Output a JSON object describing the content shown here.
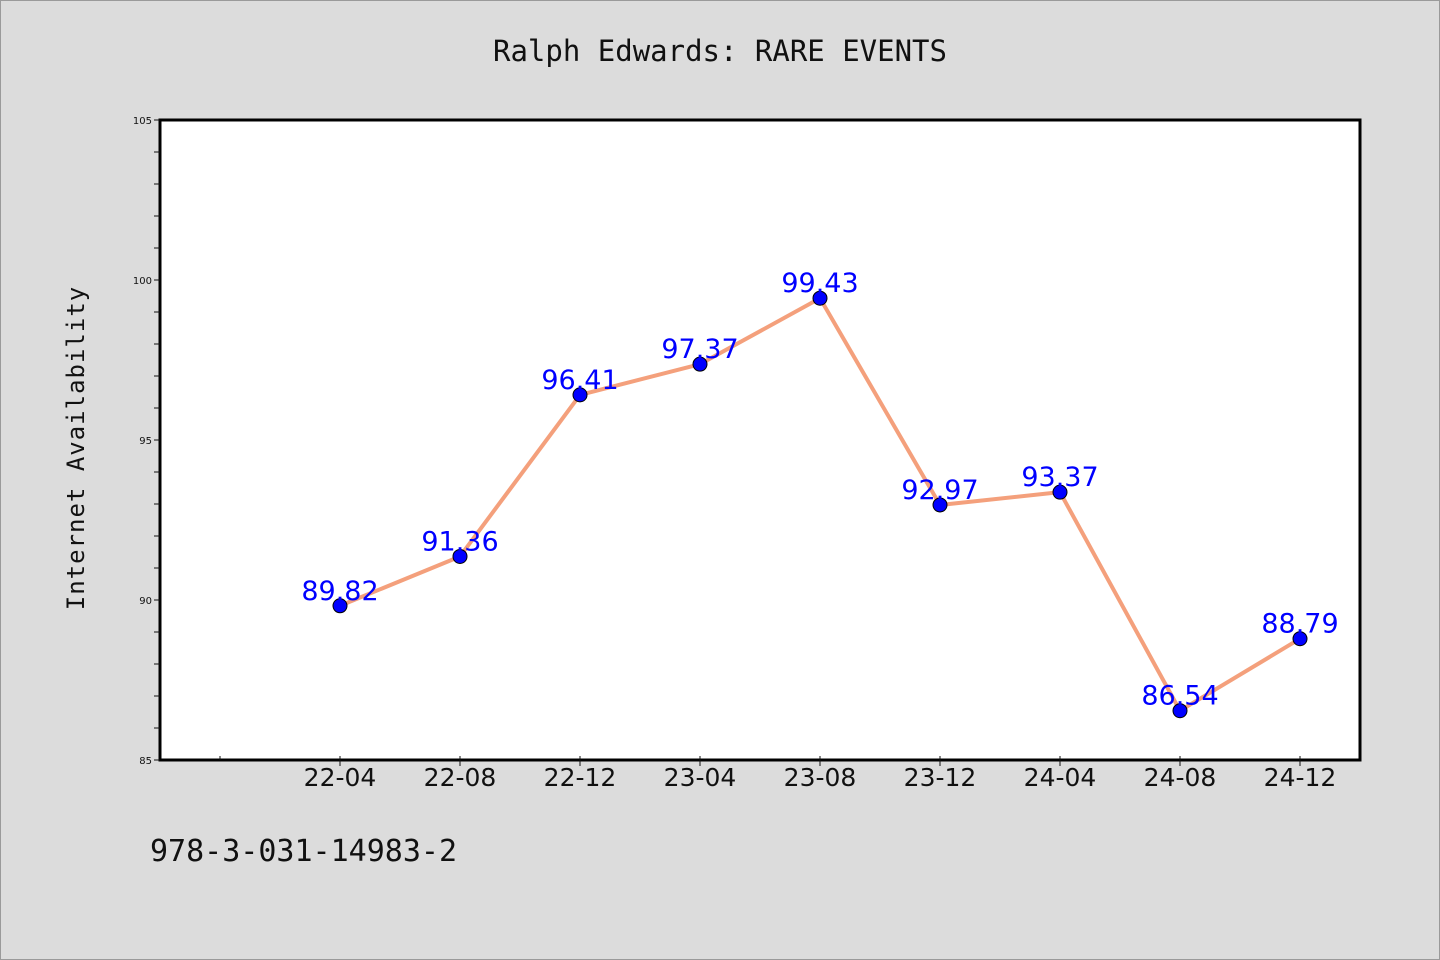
{
  "chart_data": {
    "type": "line",
    "title": "Ralph Edwards: RARE EVENTS",
    "xlabel": "",
    "ylabel": "Internet Availability",
    "categories": [
      "22-04",
      "22-08",
      "22-12",
      "23-04",
      "23-08",
      "23-12",
      "24-04",
      "24-08",
      "24-12"
    ],
    "series": [
      {
        "values": [
          89.82,
          91.36,
          96.41,
          97.37,
          99.43,
          92.97,
          93.37,
          86.54,
          88.79
        ],
        "labels": [
          "89.82",
          "91.36",
          "96.41",
          "97.37",
          "99.43",
          "92.97",
          "93.37",
          "86.54",
          "88.79"
        ],
        "line_color": "#f4a07c",
        "marker_color": "#0000ff"
      }
    ],
    "ylim": [
      85,
      105
    ],
    "yticks": [
      "85",
      "90",
      "95",
      "100",
      "105"
    ],
    "grid": false,
    "legend": "none"
  },
  "footer": {
    "isbn": "978-3-031-14983-2"
  },
  "colors": {
    "background": "#dcdcdc",
    "plot_area": "#ffffff"
  }
}
